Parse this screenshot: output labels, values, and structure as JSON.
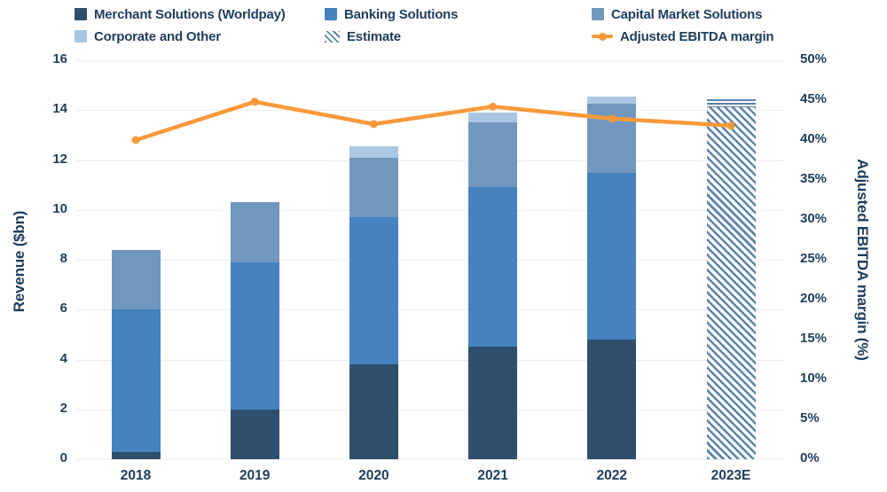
{
  "legend": {
    "items": [
      {
        "label": "Merchant Solutions (Worldpay)",
        "swatch": "square",
        "color": "#2f4f6d"
      },
      {
        "label": "Banking Solutions",
        "swatch": "square",
        "color": "#4483c0"
      },
      {
        "label": "Capital Market Solutions",
        "swatch": "square",
        "color": "#7197bf"
      },
      {
        "label": "Corporate and Other",
        "swatch": "square",
        "color": "#a9c7e2"
      },
      {
        "label": "Estimate",
        "swatch": "hatch",
        "color": "#5d83a8"
      },
      {
        "label": "Adjusted EBITDA margin",
        "swatch": "line",
        "color": "#f8993b"
      }
    ]
  },
  "chart_data": {
    "type": "combo: stacked bar (left axis) + line (right axis)",
    "categories": [
      "2018",
      "2019",
      "2020",
      "2021",
      "2022",
      "2023E"
    ],
    "series": [
      {
        "name": "Merchant Solutions (Worldpay)",
        "type": "bar",
        "color": "#2f4f6d",
        "values": [
          0.3,
          2.0,
          3.8,
          4.5,
          4.8,
          null
        ]
      },
      {
        "name": "Banking Solutions",
        "type": "bar",
        "color": "#4483c0",
        "values": [
          5.7,
          5.9,
          5.9,
          6.4,
          6.7,
          null
        ]
      },
      {
        "name": "Capital Market Solutions",
        "type": "bar",
        "color": "#7197bf",
        "values": [
          2.4,
          2.4,
          2.4,
          2.6,
          2.75,
          null
        ]
      },
      {
        "name": "Corporate and Other",
        "type": "bar",
        "color": "#a9c7e2",
        "values": [
          0,
          0,
          0.45,
          0.4,
          0.3,
          null
        ]
      },
      {
        "name": "Adjusted EBITDA margin",
        "type": "line",
        "axis": "right",
        "color": "#f8993b",
        "values": [
          40.0,
          44.8,
          42.0,
          44.2,
          42.7,
          41.8
        ]
      }
    ],
    "estimate": {
      "category": "2023E",
      "total": 14.45,
      "cap_units": 0.35,
      "stripe_color": "#5d83a8"
    },
    "left_axis": {
      "title": "Revenue ($bn)",
      "min": 0,
      "max": 16,
      "step": 2,
      "ticks": [
        "16",
        "14",
        "12",
        "10",
        "8",
        "6",
        "4",
        "2",
        "0"
      ]
    },
    "right_axis": {
      "title": "Adjusted EBITDA margin (%)",
      "min": 0,
      "max": 50,
      "step": 5,
      "ticks": [
        "50%",
        "45%",
        "40%",
        "35%",
        "30%",
        "25%",
        "20%",
        "15%",
        "10%",
        "5%",
        "0%"
      ]
    },
    "grid": "horizontal only",
    "legend_position": "top"
  },
  "colors": {
    "text": "#1e3d5c",
    "gridline": "#ececec",
    "background": "#ffffff",
    "line": "#f8993b"
  }
}
